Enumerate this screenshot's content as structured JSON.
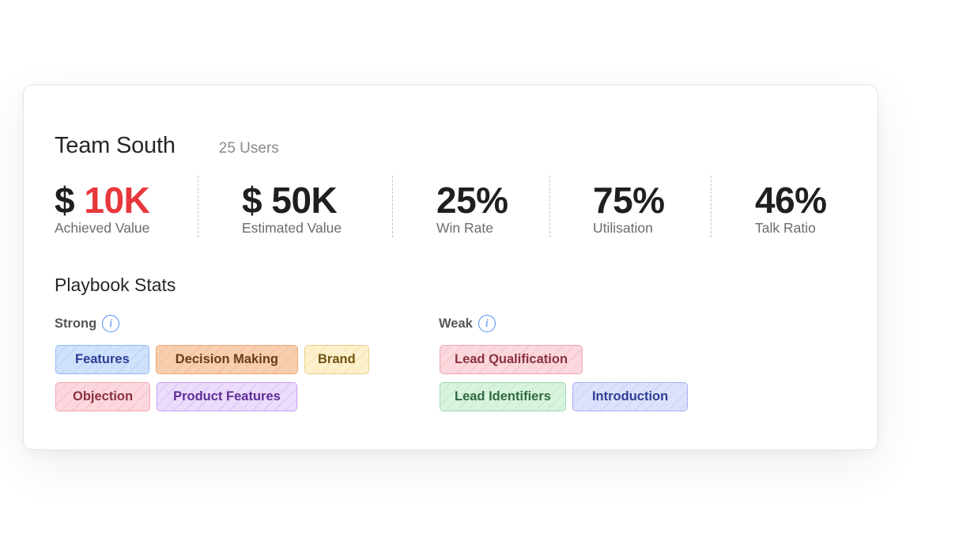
{
  "team": {
    "title": "Team South",
    "users": "25 Users"
  },
  "metrics": [
    {
      "currency": "$",
      "value": "10K",
      "label": "Achieved Value",
      "value_color": "#e8373b"
    },
    {
      "value": "$ 50K",
      "label": "Estimated Value"
    },
    {
      "value": "25%",
      "label": "Win Rate"
    },
    {
      "value": "75%",
      "label": "Utilisation"
    },
    {
      "value": "46%",
      "label": "Talk Ratio"
    }
  ],
  "playbook": {
    "title": "Playbook Stats",
    "strong": {
      "label": "Strong",
      "icon": "info-icon",
      "tags": [
        {
          "label": "Features",
          "color": "blue"
        },
        {
          "label": "Decision Making",
          "color": "orange"
        },
        {
          "label": "Brand",
          "color": "yellow"
        },
        {
          "label": "Objection",
          "color": "pink"
        },
        {
          "label": "Product Features",
          "color": "purple"
        }
      ]
    },
    "weak": {
      "label": "Weak",
      "icon": "info-icon",
      "tags": [
        {
          "label": "Lead Qualification",
          "color": "pink"
        },
        {
          "label": "Lead Identifiers",
          "color": "green"
        },
        {
          "label": "Introduction",
          "color": "indigo"
        }
      ]
    }
  }
}
